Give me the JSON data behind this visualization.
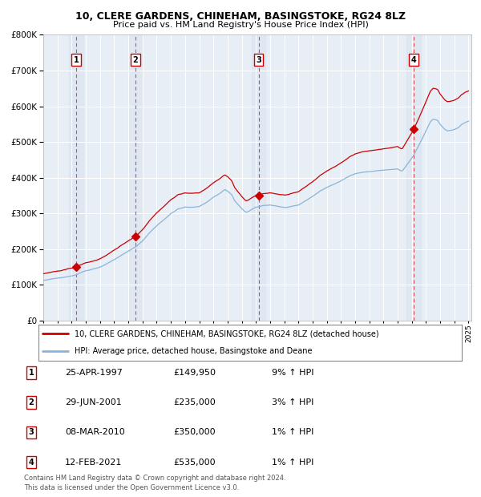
{
  "title1": "10, CLERE GARDENS, CHINEHAM, BASINGSTOKE, RG24 8LZ",
  "title2": "Price paid vs. HM Land Registry's House Price Index (HPI)",
  "plot_bg_color": "#e8eef5",
  "ylim": [
    0,
    800000
  ],
  "yticks": [
    0,
    100000,
    200000,
    300000,
    400000,
    500000,
    600000,
    700000,
    800000
  ],
  "sale_year_nums": [
    1997.32,
    2001.5,
    2010.19,
    2021.12
  ],
  "sale_prices": [
    149950,
    235000,
    350000,
    535000
  ],
  "sale_labels": [
    "1",
    "2",
    "3",
    "4"
  ],
  "hpi_line_color": "#8ab4d8",
  "price_line_color": "#cc0000",
  "sale_marker_color": "#cc0000",
  "dashed_line_color": "#cc3333",
  "shade_color": "#c8d8ea",
  "legend_label1": "10, CLERE GARDENS, CHINEHAM, BASINGSTOKE, RG24 8LZ (detached house)",
  "legend_label2": "HPI: Average price, detached house, Basingstoke and Deane",
  "table_rows": [
    [
      "1",
      "25-APR-1997",
      "£149,950",
      "9% ↑ HPI"
    ],
    [
      "2",
      "29-JUN-2001",
      "£235,000",
      "3% ↑ HPI"
    ],
    [
      "3",
      "08-MAR-2010",
      "£350,000",
      "1% ↑ HPI"
    ],
    [
      "4",
      "12-FEB-2021",
      "£535,000",
      "1% ↑ HPI"
    ]
  ],
  "footnote": "Contains HM Land Registry data © Crown copyright and database right 2024.\nThis data is licensed under the Open Government Licence v3.0.",
  "xstart_year": 1995,
  "xend_year": 2025
}
